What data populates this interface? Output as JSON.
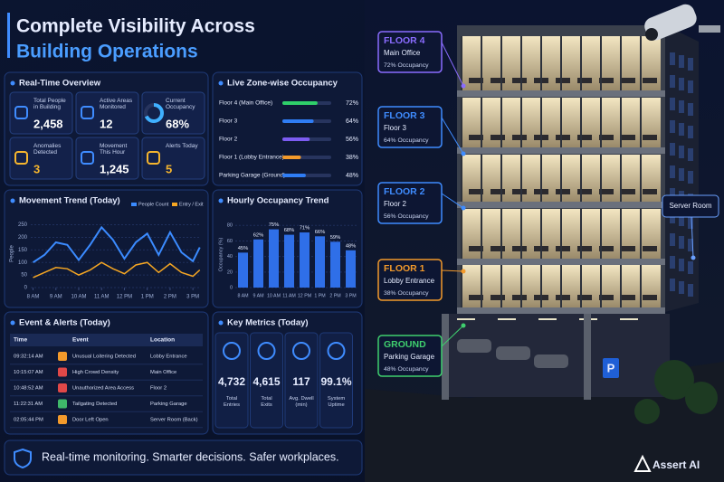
{
  "header": {
    "title_line1": "Complete Visibility Across",
    "title_line2": "Building Operations"
  },
  "overview": {
    "title": "Real-Time Overview",
    "stats": [
      {
        "label": "Total People in Building",
        "value": "2,458"
      },
      {
        "label": "Active Areas Monitored",
        "value": "12"
      },
      {
        "label": "Current Occupancy",
        "value": "68%",
        "gauge": 68
      },
      {
        "label": "Anomalies Detected",
        "value": "3"
      },
      {
        "label": "Movement This Hour",
        "value": "1,245"
      },
      {
        "label": "Alerts Today",
        "value": "5"
      }
    ]
  },
  "zones": {
    "title": "Live Zone-wise Occupancy",
    "categories": [
      "Floor 4 (Main Office)",
      "Floor 3",
      "Floor 2",
      "Floor 1 (Lobby Entrance)",
      "Parking Garage (Ground)"
    ],
    "values": [
      72,
      64,
      56,
      38,
      48
    ],
    "value_labels": [
      "72%",
      "64%",
      "56%",
      "38%",
      "48%"
    ],
    "colors": [
      "#2fd06a",
      "#2f7df5",
      "#7c5cf2",
      "#f39a2b",
      "#2f7df5"
    ],
    "xlim": [
      0,
      100
    ]
  },
  "chart_data": [
    {
      "type": "line",
      "title": "Movement Trend (Today)",
      "ylabel": "People",
      "x": [
        8,
        8.5,
        9,
        9.5,
        10,
        10.5,
        11,
        11.5,
        12,
        12.5,
        13,
        13.5,
        14,
        14.5,
        15,
        15.3
      ],
      "xlim": [
        7.9,
        15.35
      ],
      "xticks": [
        {
          "value": 8,
          "label": "8 AM"
        },
        {
          "value": 9,
          "label": "9 AM"
        },
        {
          "value": 10,
          "label": "10 AM"
        },
        {
          "value": 11,
          "label": "11 AM"
        },
        {
          "value": 12,
          "label": "12 PM"
        },
        {
          "value": 13,
          "label": "1 PM"
        },
        {
          "value": 14,
          "label": "2 PM"
        },
        {
          "value": 15,
          "label": "3 PM"
        }
      ],
      "ylim": [
        0,
        270
      ],
      "yticks": [
        0,
        50,
        100,
        150,
        200,
        250
      ],
      "grid": true,
      "series": [
        {
          "name": "People Count",
          "color": "#3b8bff",
          "values": [
            100,
            130,
            180,
            170,
            110,
            170,
            240,
            190,
            115,
            180,
            215,
            130,
            220,
            140,
            105,
            160
          ]
        },
        {
          "name": "Entry / Exit",
          "color": "#f5a623",
          "values": [
            40,
            60,
            80,
            75,
            50,
            70,
            100,
            75,
            55,
            90,
            100,
            60,
            95,
            60,
            45,
            70
          ]
        }
      ]
    },
    {
      "type": "bar",
      "title": "Hourly Occupancy Trend",
      "ylabel": "Occupancy (%)",
      "categories": [
        "8 AM",
        "9 AM",
        "10 AM",
        "11 AM",
        "12 PM",
        "1 PM",
        "2 PM",
        "3 PM"
      ],
      "values": [
        45,
        62,
        75,
        68,
        71,
        66,
        59,
        48
      ],
      "value_labels": [
        "45%",
        "62%",
        "75%",
        "68%",
        "71%",
        "66%",
        "59%",
        "48%"
      ],
      "color": "#2f6fe8",
      "ylim": [
        0,
        85
      ],
      "yticks": [
        0,
        20,
        40,
        60,
        80
      ],
      "grid": true
    }
  ],
  "events": {
    "title": "Event & Alerts (Today)",
    "columns": [
      "Time",
      "Event",
      "Location"
    ],
    "rows": [
      [
        "09:32:14 AM",
        "Unusual Loitering Detected",
        "Lobby Entrance"
      ],
      [
        "10:15:07 AM",
        "High Crowd Density",
        "Main Office"
      ],
      [
        "10:48:52 AM",
        "Unauthorized Area Access",
        "Floor 2"
      ],
      [
        "11:22:31 AM",
        "Tailgating Detected",
        "Parking Garage"
      ],
      [
        "02:05:44 PM",
        "Door Left Open",
        "Server Room (Back)"
      ]
    ]
  },
  "metrics": {
    "title": "Key Metrics (Today)",
    "items": [
      {
        "value": "4,732",
        "label": "Total Entries"
      },
      {
        "value": "4,615",
        "label": "Total Exits"
      },
      {
        "value": "117",
        "label": "Avg. Dwell (min)"
      },
      {
        "value": "99.1%",
        "label": "System Uptime"
      }
    ]
  },
  "footer": {
    "text": "Real-time monitoring. Smarter decisions. Safer workplaces."
  },
  "building": {
    "floors": [
      {
        "level": "FLOOR 4",
        "name": "Main Office",
        "occupancy": "72% Occupancy",
        "color": "#8a6cff"
      },
      {
        "level": "FLOOR 3",
        "name": "Floor 3",
        "occupancy": "64% Occupancy",
        "color": "#3f8cff"
      },
      {
        "level": "FLOOR 2",
        "name": "Floor 2",
        "occupancy": "56% Occupancy",
        "color": "#3f8cff"
      },
      {
        "level": "FLOOR 1",
        "name": "Lobby Entrance",
        "occupancy": "38% Occupancy",
        "color": "#f39a2b"
      },
      {
        "level": "GROUND",
        "name": "Parking Garage",
        "occupancy": "48% Occupancy",
        "color": "#3fcf6e"
      }
    ],
    "server_room": "Server Room",
    "parking_sign": "P",
    "brand": "Assert AI"
  }
}
